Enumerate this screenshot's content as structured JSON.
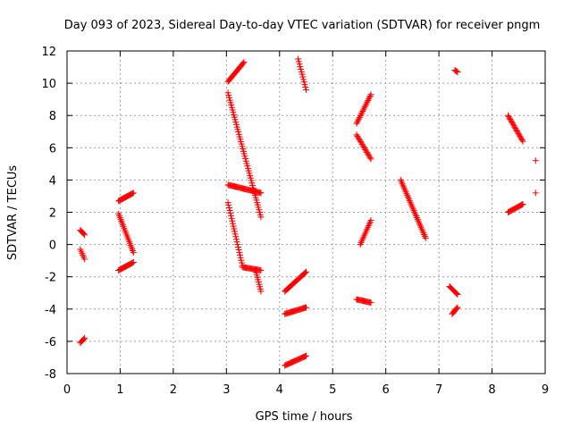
{
  "chart_data": {
    "type": "scatter",
    "title": "Day 093 of 2023, Sidereal Day-to-day VTEC variation (SDTVAR) for receiver pngm",
    "xlabel": "GPS time / hours",
    "ylabel": "SDTVAR / TECUs",
    "xlim": [
      0,
      9
    ],
    "ylim": [
      -8,
      12
    ],
    "xticks": [
      0,
      1,
      2,
      3,
      4,
      5,
      6,
      7,
      8,
      9
    ],
    "yticks": [
      -8,
      -6,
      -4,
      -2,
      0,
      2,
      4,
      6,
      8,
      10,
      12
    ],
    "grid": true,
    "marker": "+",
    "series": [
      {
        "name": "SDTVAR",
        "color": "#ff0000",
        "tracks": [
          {
            "x0": 0.25,
            "y0": 0.9,
            "x1": 0.33,
            "y1": 0.6
          },
          {
            "x0": 0.25,
            "y0": -0.3,
            "x1": 0.33,
            "y1": -0.9
          },
          {
            "x0": 0.25,
            "y0": -6.1,
            "x1": 0.33,
            "y1": -5.8
          },
          {
            "x0": 0.97,
            "y0": 2.7,
            "x1": 1.25,
            "y1": 3.2
          },
          {
            "x0": 0.97,
            "y0": 1.9,
            "x1": 1.25,
            "y1": -0.5
          },
          {
            "x0": 0.97,
            "y0": -1.6,
            "x1": 1.25,
            "y1": -1.1
          },
          {
            "x0": 3.03,
            "y0": 10.1,
            "x1": 3.33,
            "y1": 11.3
          },
          {
            "x0": 3.03,
            "y0": 9.4,
            "x1": 3.65,
            "y1": 1.7
          },
          {
            "x0": 3.03,
            "y0": 3.7,
            "x1": 3.65,
            "y1": 3.2
          },
          {
            "x0": 3.03,
            "y0": 2.6,
            "x1": 3.3,
            "y1": -1.3
          },
          {
            "x0": 3.3,
            "y0": -1.4,
            "x1": 3.65,
            "y1": -1.6
          },
          {
            "x0": 3.55,
            "y0": -1.6,
            "x1": 3.65,
            "y1": -2.9
          },
          {
            "x0": 4.35,
            "y0": 11.5,
            "x1": 4.5,
            "y1": 9.6
          },
          {
            "x0": 4.1,
            "y0": -2.9,
            "x1": 4.5,
            "y1": -1.7
          },
          {
            "x0": 4.1,
            "y0": -4.3,
            "x1": 4.5,
            "y1": -3.9
          },
          {
            "x0": 4.1,
            "y0": -7.5,
            "x1": 4.5,
            "y1": -6.9
          },
          {
            "x0": 5.45,
            "y0": 7.5,
            "x1": 5.72,
            "y1": 9.3
          },
          {
            "x0": 5.45,
            "y0": 6.8,
            "x1": 5.72,
            "y1": 5.3
          },
          {
            "x0": 5.52,
            "y0": 0.0,
            "x1": 5.72,
            "y1": 1.5
          },
          {
            "x0": 5.45,
            "y0": -3.4,
            "x1": 5.72,
            "y1": -3.6
          },
          {
            "x0": 6.28,
            "y0": 4.0,
            "x1": 6.75,
            "y1": 0.4
          },
          {
            "x0": 7.2,
            "y0": -2.6,
            "x1": 7.35,
            "y1": -3.1
          },
          {
            "x0": 7.25,
            "y0": -4.3,
            "x1": 7.35,
            "y1": -3.9
          },
          {
            "x0": 7.3,
            "y0": 10.8,
            "x1": 7.35,
            "y1": 10.7
          },
          {
            "x0": 8.3,
            "y0": 8.0,
            "x1": 8.58,
            "y1": 6.4
          },
          {
            "x0": 8.3,
            "y0": 2.0,
            "x1": 8.58,
            "y1": 2.5
          }
        ],
        "points": [
          {
            "x": 8.82,
            "y": 5.2
          },
          {
            "x": 8.82,
            "y": 3.2
          }
        ]
      }
    ]
  }
}
